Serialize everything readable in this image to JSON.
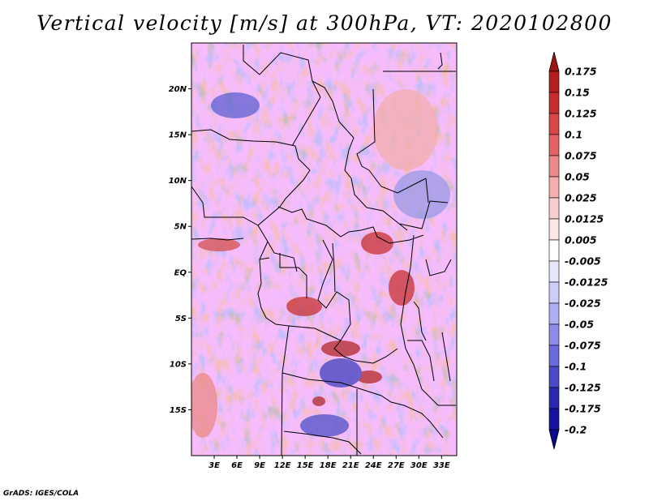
{
  "title": "Vertical velocity [m/s] at 300hPa, VT: 2020102800",
  "credit": "GrADS: IGES/COLA",
  "map": {
    "lon_range": [
      0,
      35
    ],
    "lat_range": [
      -20,
      25
    ],
    "lat_ticks": [
      {
        "value": 20,
        "label": "20N"
      },
      {
        "value": 15,
        "label": "15N"
      },
      {
        "value": 10,
        "label": "10N"
      },
      {
        "value": 5,
        "label": "5N"
      },
      {
        "value": 0,
        "label": "EQ"
      },
      {
        "value": -5,
        "label": "5S"
      },
      {
        "value": -10,
        "label": "10S"
      },
      {
        "value": -15,
        "label": "15S"
      }
    ],
    "lon_ticks": [
      {
        "value": 3,
        "label": "3E"
      },
      {
        "value": 6,
        "label": "6E"
      },
      {
        "value": 9,
        "label": "9E"
      },
      {
        "value": 12,
        "label": "12E"
      },
      {
        "value": 15,
        "label": "15E"
      },
      {
        "value": 18,
        "label": "18E"
      },
      {
        "value": 21,
        "label": "21E"
      },
      {
        "value": 24,
        "label": "24E"
      },
      {
        "value": 27,
        "label": "27E"
      },
      {
        "value": 30,
        "label": "30E"
      },
      {
        "value": 33,
        "label": "33E"
      }
    ]
  },
  "colorbar": {
    "labels": [
      "0.175",
      "0.15",
      "0.125",
      "0.1",
      "0.075",
      "0.05",
      "0.025",
      "0.0125",
      "0.005",
      "-0.005",
      "-0.0125",
      "-0.025",
      "-0.05",
      "-0.075",
      "-0.1",
      "-0.125",
      "-0.175",
      "-0.2"
    ],
    "colors": [
      "#a01414",
      "#b41e1e",
      "#c82d2d",
      "#d84646",
      "#e46464",
      "#ec8a8a",
      "#f4aeae",
      "#f8cdcd",
      "#fce6e6",
      "#ffffff",
      "#e6e6fc",
      "#cdcdf8",
      "#aeaef2",
      "#8c8ce8",
      "#6a6adc",
      "#4a4ac8",
      "#2828b0",
      "#1414a0",
      "#0a0a90"
    ],
    "top_arrow_color": "#a01414",
    "bottom_arrow_color": "#0a0a90"
  }
}
